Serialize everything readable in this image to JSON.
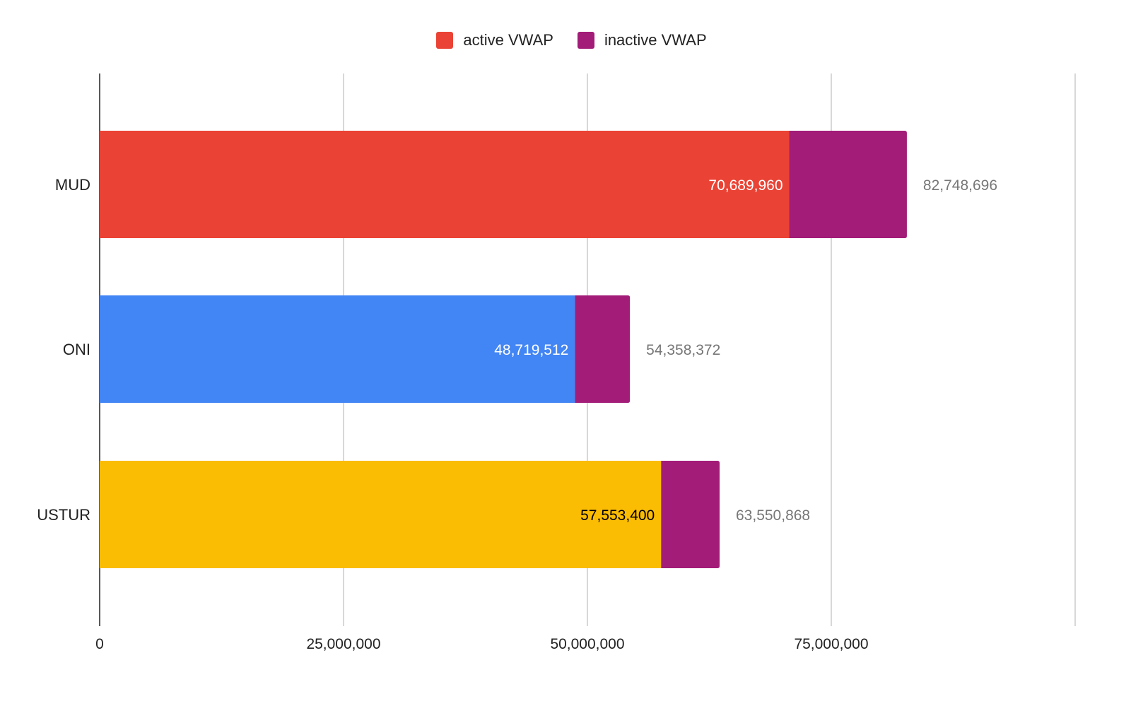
{
  "chart_data": {
    "type": "bar",
    "orientation": "horizontal",
    "stacked": true,
    "categories": [
      "MUD",
      "ONI",
      "USTUR"
    ],
    "series": [
      {
        "name": "active VWAP",
        "values": [
          70689960,
          48719512,
          57553400
        ],
        "labels": [
          "70,689,960",
          "48,719,512",
          "57,553,400"
        ]
      },
      {
        "name": "inactive VWAP",
        "values": [
          12058736,
          5638860,
          5997468
        ]
      }
    ],
    "totals": [
      82748696,
      54358372,
      63550868
    ],
    "total_labels": [
      "82,748,696",
      "54,358,372",
      "63,550,868"
    ],
    "bar_colors": [
      "#EA4335",
      "#4285F4",
      "#FBBC04"
    ],
    "inactive_color": "#A21C78",
    "active_label_colors": [
      "#FFFFFF",
      "#FFFFFF",
      "#000000"
    ],
    "legend_colors": [
      "#EA4335",
      "#A21C78"
    ],
    "xlim": [
      0,
      100000000
    ],
    "xticks": [
      0,
      25000000,
      50000000,
      75000000,
      100000000
    ],
    "xtick_labels": [
      "0",
      "25,000,000",
      "50,000,000",
      "75,000,000",
      ""
    ],
    "grid": true,
    "legend_position": "top-center"
  }
}
